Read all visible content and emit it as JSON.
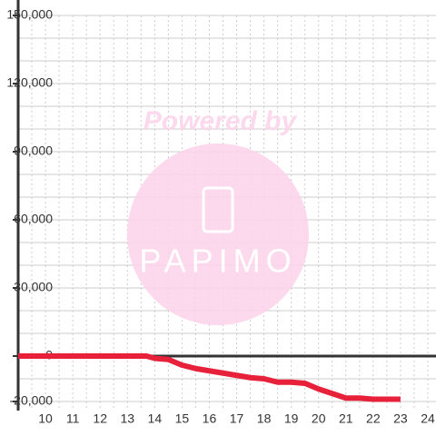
{
  "chart_data": {
    "type": "line",
    "watermark": {
      "line1": "Powered by",
      "line2": "PAPIMO"
    },
    "x": [
      9,
      13.7,
      14,
      14.5,
      15,
      15.5,
      16,
      16.5,
      17,
      17.5,
      18,
      18.5,
      19,
      19.5,
      20,
      20.5,
      21,
      21.5,
      22,
      23
    ],
    "series": [
      {
        "color": "#e8213a",
        "values": [
          0,
          0,
          -1000,
          -1500,
          -4000,
          -5500,
          -6500,
          -7500,
          -8500,
          -9500,
          -10000,
          -11500,
          -11500,
          -12000,
          -14500,
          -16500,
          -18500,
          -18500,
          -19000,
          -19000
        ]
      }
    ],
    "xlim": [
      9,
      24.3
    ],
    "xticks": [
      10,
      11,
      12,
      13,
      14,
      15,
      16,
      17,
      18,
      19,
      20,
      21,
      22,
      23,
      24
    ],
    "ylim": [
      -24000,
      150000
    ],
    "yticks": [
      {
        "value": -20000,
        "label": "-20,000"
      },
      0,
      {
        "value": 30000,
        "label": "30,000"
      },
      {
        "value": 60000,
        "label": "60,000"
      },
      {
        "value": 90000,
        "label": "90,000"
      },
      {
        "value": 120000,
        "label": "120,000"
      },
      {
        "value": 150000,
        "label": "150,000"
      }
    ],
    "grid": true
  }
}
